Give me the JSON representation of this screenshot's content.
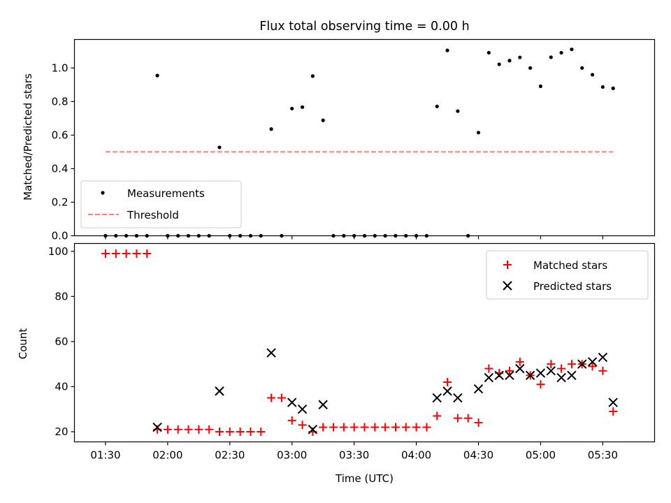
{
  "chart_data": [
    {
      "type": "scatter",
      "title": "Flux total observing time = 0.00 h",
      "ylabel": "Matched/Predicted stars",
      "xlim": [
        -15,
        265
      ],
      "ylim": [
        0,
        1.17
      ],
      "yticks": [
        0.0,
        0.2,
        0.4,
        0.6,
        0.8,
        1.0
      ],
      "ytick_labels": [
        "0.0",
        "0.2",
        "0.4",
        "0.6",
        "0.8",
        "1.0"
      ],
      "legend": {
        "position": "lower-left",
        "entries": [
          "Measurements",
          "Threshold"
        ]
      },
      "threshold": {
        "name": "Threshold",
        "value": 0.5,
        "x": [
          0,
          245
        ],
        "color": "#ff8080"
      },
      "series": [
        {
          "name": "Measurements",
          "color": "#000000",
          "marker": "dot",
          "points": [
            [
              0,
              0
            ],
            [
              5,
              0
            ],
            [
              10,
              0
            ],
            [
              15,
              0
            ],
            [
              20,
              0
            ],
            [
              25,
              0.955
            ],
            [
              30,
              0
            ],
            [
              35,
              0
            ],
            [
              40,
              0
            ],
            [
              45,
              0
            ],
            [
              50,
              0
            ],
            [
              55,
              0.527
            ],
            [
              60,
              0
            ],
            [
              65,
              0
            ],
            [
              70,
              0
            ],
            [
              75,
              0
            ],
            [
              80,
              0.636
            ],
            [
              85,
              0
            ],
            [
              90,
              0.758
            ],
            [
              95,
              0.767
            ],
            [
              100,
              0.952
            ],
            [
              105,
              0.688
            ],
            [
              110,
              0
            ],
            [
              115,
              0
            ],
            [
              120,
              0
            ],
            [
              125,
              0
            ],
            [
              130,
              0
            ],
            [
              135,
              0
            ],
            [
              140,
              0
            ],
            [
              145,
              0
            ],
            [
              150,
              0
            ],
            [
              155,
              0
            ],
            [
              160,
              0.771
            ],
            [
              165,
              1.105
            ],
            [
              170,
              0.743
            ],
            [
              175,
              0
            ],
            [
              180,
              0.615
            ],
            [
              185,
              1.091
            ],
            [
              190,
              1.022
            ],
            [
              195,
              1.044
            ],
            [
              200,
              1.063
            ],
            [
              205,
              1.0
            ],
            [
              210,
              0.891
            ],
            [
              215,
              1.064
            ],
            [
              220,
              1.091
            ],
            [
              225,
              1.111
            ],
            [
              230,
              1.0
            ],
            [
              235,
              0.96
            ],
            [
              240,
              0.887
            ],
            [
              245,
              0.879
            ]
          ]
        }
      ]
    },
    {
      "type": "scatter",
      "xlabel": "Time (UTC)",
      "ylabel": "Count",
      "xlim": [
        -15,
        265
      ],
      "ylim": [
        15.5,
        103.5
      ],
      "yticks": [
        20,
        40,
        60,
        80,
        100
      ],
      "ytick_labels": [
        "20",
        "40",
        "60",
        "80",
        "100"
      ],
      "xticks": [
        0,
        30,
        60,
        90,
        120,
        150,
        180,
        210,
        240
      ],
      "xtick_labels": [
        "01:30",
        "02:00",
        "02:30",
        "03:00",
        "03:30",
        "04:00",
        "04:30",
        "05:00",
        "05:30"
      ],
      "legend": {
        "position": "upper-right",
        "entries": [
          "Matched stars",
          "Predicted stars"
        ]
      },
      "series": [
        {
          "name": "Matched stars",
          "color": "#ff0000",
          "marker": "plus",
          "points": [
            [
              0,
              99
            ],
            [
              5,
              99
            ],
            [
              10,
              99
            ],
            [
              15,
              99
            ],
            [
              20,
              99
            ],
            [
              25,
              21
            ],
            [
              30,
              21
            ],
            [
              35,
              21
            ],
            [
              40,
              21
            ],
            [
              45,
              21
            ],
            [
              50,
              21
            ],
            [
              55,
              20
            ],
            [
              60,
              20
            ],
            [
              65,
              20
            ],
            [
              70,
              20
            ],
            [
              75,
              20
            ],
            [
              80,
              35
            ],
            [
              85,
              35
            ],
            [
              90,
              25
            ],
            [
              95,
              23
            ],
            [
              100,
              20
            ],
            [
              105,
              22
            ],
            [
              110,
              22
            ],
            [
              115,
              22
            ],
            [
              120,
              22
            ],
            [
              125,
              22
            ],
            [
              130,
              22
            ],
            [
              135,
              22
            ],
            [
              140,
              22
            ],
            [
              145,
              22
            ],
            [
              150,
              22
            ],
            [
              155,
              22
            ],
            [
              160,
              27
            ],
            [
              165,
              42
            ],
            [
              170,
              26
            ],
            [
              175,
              26
            ],
            [
              180,
              24
            ],
            [
              185,
              48
            ],
            [
              190,
              46
            ],
            [
              195,
              47
            ],
            [
              200,
              51
            ],
            [
              205,
              45
            ],
            [
              210,
              41
            ],
            [
              215,
              50
            ],
            [
              220,
              48
            ],
            [
              225,
              50
            ],
            [
              230,
              50
            ],
            [
              235,
              49
            ],
            [
              240,
              47
            ],
            [
              245,
              29
            ]
          ]
        },
        {
          "name": "Predicted stars",
          "color": "#000000",
          "marker": "x",
          "points": [
            [
              25,
              22
            ],
            [
              55,
              38
            ],
            [
              80,
              55
            ],
            [
              90,
              33
            ],
            [
              95,
              30
            ],
            [
              100,
              21
            ],
            [
              105,
              32
            ],
            [
              160,
              35
            ],
            [
              165,
              38
            ],
            [
              170,
              35
            ],
            [
              180,
              39
            ],
            [
              185,
              44
            ],
            [
              190,
              45
            ],
            [
              195,
              45
            ],
            [
              200,
              48
            ],
            [
              205,
              45
            ],
            [
              210,
              46
            ],
            [
              215,
              47
            ],
            [
              220,
              44
            ],
            [
              225,
              45
            ],
            [
              230,
              50
            ],
            [
              235,
              51
            ],
            [
              240,
              53
            ],
            [
              245,
              33
            ]
          ]
        }
      ]
    }
  ]
}
